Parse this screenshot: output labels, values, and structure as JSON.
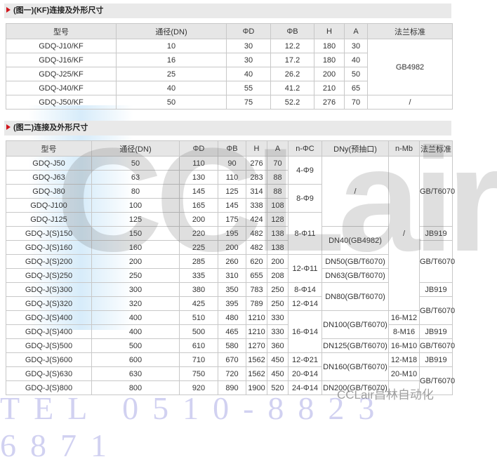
{
  "section1": {
    "title": "(图一)(KF)连接及外形尺寸",
    "headers": [
      "型号",
      "通径(DN)",
      "ΦD",
      "ΦB",
      "H",
      "A",
      "法兰标准"
    ],
    "rows": [
      [
        "GDQ-J10/KF",
        "10",
        "30",
        "12.2",
        "180",
        "30"
      ],
      [
        "GDQ-J16/KF",
        "16",
        "30",
        "17.2",
        "180",
        "40"
      ],
      [
        "GDQ-J25/KF",
        "25",
        "40",
        "26.2",
        "200",
        "50"
      ],
      [
        "GDQ-J40/KF",
        "40",
        "55",
        "41.2",
        "210",
        "65"
      ],
      [
        "GDQ-J50/KF",
        "50",
        "75",
        "52.2",
        "276",
        "70"
      ]
    ],
    "standard_groups": [
      {
        "text": "GB4982",
        "rows": 4
      },
      {
        "text": "/",
        "rows": 1
      }
    ]
  },
  "section2": {
    "title": "(图二)连接及外形尺寸",
    "headers": [
      "型号",
      "通径(DN)",
      "ΦD",
      "ΦB",
      "H",
      "A",
      "n-ΦC",
      "DNy(预抽口)",
      "n-Mb",
      "法兰标准"
    ],
    "rows": [
      [
        "GDQ-J50",
        "50",
        "110",
        "90",
        "276",
        "70"
      ],
      [
        "GDQ-J63",
        "63",
        "130",
        "110",
        "283",
        "88"
      ],
      [
        "GDQ-J80",
        "80",
        "145",
        "125",
        "314",
        "88"
      ],
      [
        "GDQ-J100",
        "100",
        "165",
        "145",
        "338",
        "108"
      ],
      [
        "GDQ-J125",
        "125",
        "200",
        "175",
        "424",
        "128"
      ],
      [
        "GDQ-J(S)150",
        "150",
        "220",
        "195",
        "482",
        "138"
      ],
      [
        "GDQ-J(S)160",
        "160",
        "225",
        "200",
        "482",
        "138"
      ],
      [
        "GDQ-J(S)200",
        "200",
        "285",
        "260",
        "620",
        "200"
      ],
      [
        "GDQ-J(S)250",
        "250",
        "335",
        "310",
        "655",
        "208"
      ],
      [
        "GDQ-J(S)300",
        "300",
        "380",
        "350",
        "783",
        "250"
      ],
      [
        "GDQ-J(S)320",
        "320",
        "425",
        "395",
        "789",
        "250"
      ],
      [
        "GDQ-J(S)400",
        "400",
        "510",
        "480",
        "1210",
        "330"
      ],
      [
        "GDQ-J(S)400",
        "400",
        "500",
        "465",
        "1210",
        "330"
      ],
      [
        "GDQ-J(S)500",
        "500",
        "610",
        "580",
        "1270",
        "360"
      ],
      [
        "GDQ-J(S)600",
        "600",
        "710",
        "670",
        "1562",
        "450"
      ],
      [
        "GDQ-J(S)630",
        "630",
        "750",
        "720",
        "1562",
        "450"
      ],
      [
        "GDQ-J(S)800",
        "800",
        "920",
        "890",
        "1900",
        "520"
      ]
    ],
    "n_phic": [
      {
        "text": "4-Φ9",
        "rows": 2
      },
      {
        "text": "8-Φ9",
        "rows": 2
      },
      {
        "text": "8-Φ11",
        "rows": 3
      },
      {
        "text": "12-Φ11",
        "rows": 2
      },
      {
        "text": "8-Φ14",
        "rows": 1
      },
      {
        "text": "12-Φ14",
        "rows": 1
      },
      {
        "text": "16-Φ14",
        "rows": 3
      },
      {
        "text": "12-Φ21",
        "rows": 1
      },
      {
        "text": "20-Φ14",
        "rows": 1
      },
      {
        "text": "24-Φ14",
        "rows": 1
      }
    ],
    "dny": [
      {
        "text": "/",
        "rows": 5
      },
      {
        "text": "DN40(GB4982)",
        "rows": 2
      },
      {
        "text": "DN50(GB/T6070)",
        "rows": 1
      },
      {
        "text": "DN63(GB/T6070)",
        "rows": 1
      },
      {
        "text": "DN80(GB/T6070)",
        "rows": 2
      },
      {
        "text": "DN100(GB/T6070)",
        "rows": 2
      },
      {
        "text": "DN125(GB/T6070)",
        "rows": 1
      },
      {
        "text": "DN160(GB/T6070)",
        "rows": 2
      },
      {
        "text": "DN200(GB/T6070)",
        "rows": 1
      }
    ],
    "n_mb": [
      {
        "text": "/",
        "rows": 11
      },
      {
        "text": "16-M12",
        "rows": 1
      },
      {
        "text": "8-M16",
        "rows": 1
      },
      {
        "text": "16-M10",
        "rows": 1
      },
      {
        "text": "12-M18",
        "rows": 1
      },
      {
        "text": "20-M10",
        "rows": 1
      },
      {
        "text": "",
        "rows": 1
      }
    ],
    "standard": [
      {
        "text": "GB/T6070",
        "rows": 5
      },
      {
        "text": "JB919",
        "rows": 1
      },
      {
        "text": "GB/T6070",
        "rows": 3
      },
      {
        "text": "JB919",
        "rows": 1
      },
      {
        "text": "GB/T6070",
        "rows": 2
      },
      {
        "text": "JB919",
        "rows": 1
      },
      {
        "text": "GB/T6070",
        "rows": 1
      },
      {
        "text": "JB919",
        "rows": 1
      },
      {
        "text": "GB/T6070",
        "rows": 2
      }
    ]
  },
  "watermark": {
    "logo": "CCLair",
    "brand": "CCLair昌林自动化",
    "tel": "TEL 0510-8823 6871"
  },
  "colors": {
    "accent": "#d0141b",
    "header_bg": "#e6e6e6"
  }
}
